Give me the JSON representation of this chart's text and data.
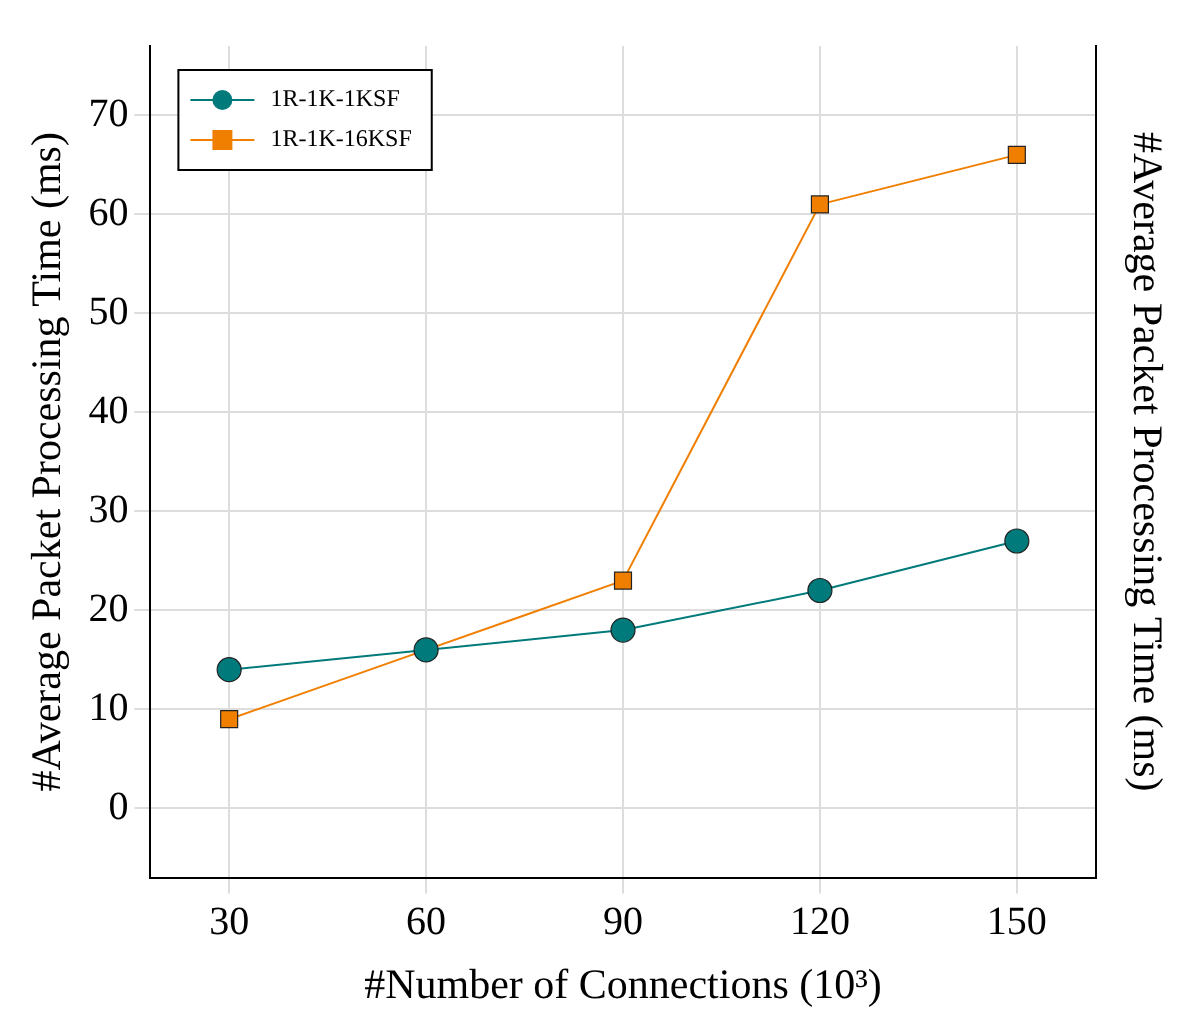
{
  "chart_data": {
    "type": "line",
    "xlabel": "#Number of Connections (10³)",
    "ylabel": "#Average Packet Processing Time (ms)",
    "y2label": "#Average Packet Processing Time (ms)",
    "x": [
      30,
      60,
      90,
      120,
      150
    ],
    "series": [
      {
        "name": "1R-1K-1KSF",
        "color": "#007a7a",
        "marker": "circle",
        "values": [
          14,
          16,
          18,
          22,
          27
        ]
      },
      {
        "name": "1R-1K-16KSF",
        "color": "#f07f00",
        "marker": "square",
        "values": [
          9,
          16,
          23,
          61,
          66
        ]
      }
    ],
    "xlim": [
      18,
      162
    ],
    "xticks": [
      30,
      60,
      90,
      120,
      150
    ],
    "ylim": [
      -7,
      77
    ],
    "yticks": [
      0,
      10,
      20,
      30,
      40,
      50,
      60,
      70
    ],
    "grid": true,
    "legend": "top left",
    "line_style": "solid"
  }
}
